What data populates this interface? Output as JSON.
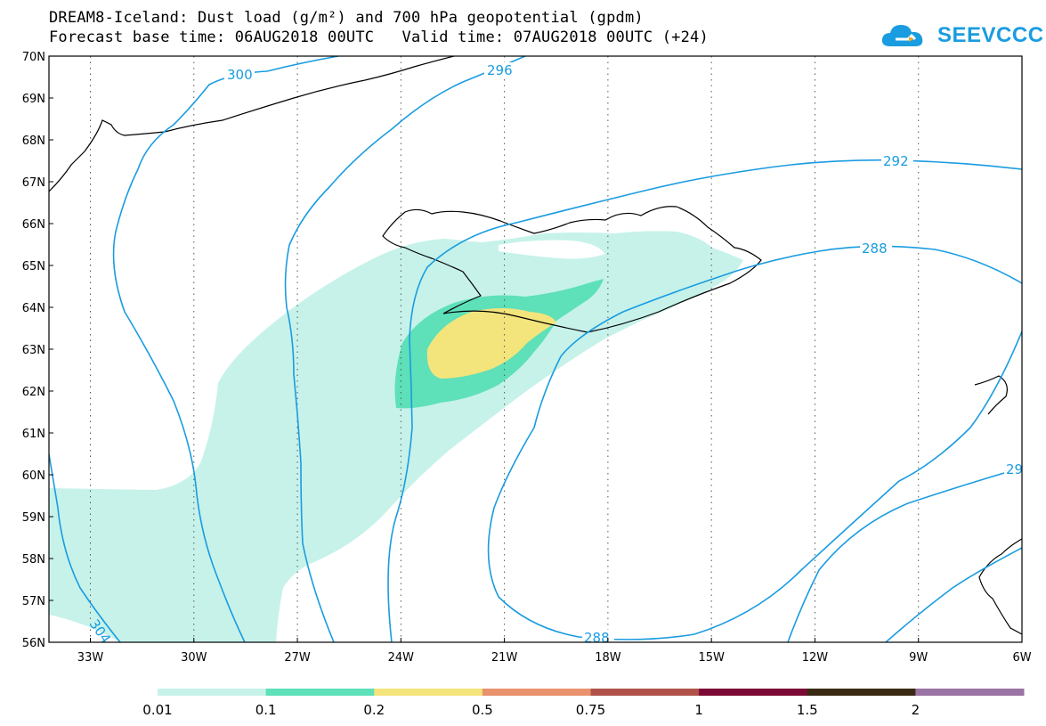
{
  "header": {
    "title_line1": "DREAM8-Iceland: Dust load (g/m²) and 700 hPa geopotential (gpdm)",
    "title_line2": "Forecast base time: 06AUG2018 00UTC   Valid time: 07AUG2018 00UTC (+24)",
    "logo_text": "SEEVCCC"
  },
  "map": {
    "lat_range": [
      56,
      70
    ],
    "lon_range": [
      -34.2,
      -6
    ],
    "lat_labels": [
      "70N",
      "69N",
      "68N",
      "67N",
      "66N",
      "65N",
      "64N",
      "63N",
      "62N",
      "61N",
      "60N",
      "59N",
      "58N",
      "57N",
      "56N"
    ],
    "lon_labels": [
      "33W",
      "30W",
      "27W",
      "24W",
      "21W",
      "18W",
      "15W",
      "12W",
      "9W",
      "6W"
    ],
    "contour_labels": [
      "300",
      "296",
      "292",
      "288",
      "288",
      "304",
      "29"
    ],
    "contour_color": "#1a9ce0",
    "dust_colors": {
      "level1": "#c6f2ea",
      "level2": "#5ee0b8",
      "level3": "#f4e47c"
    }
  },
  "colorbar": {
    "labels": [
      "0.01",
      "0.1",
      "0.2",
      "0.5",
      "0.75",
      "1",
      "1.5",
      "2"
    ],
    "colors": [
      "#c6f2ea",
      "#5ee0b8",
      "#f4e47c",
      "#e8926e",
      "#b0524a",
      "#7a0a35",
      "#3a2a14",
      "#9a74a4"
    ]
  }
}
